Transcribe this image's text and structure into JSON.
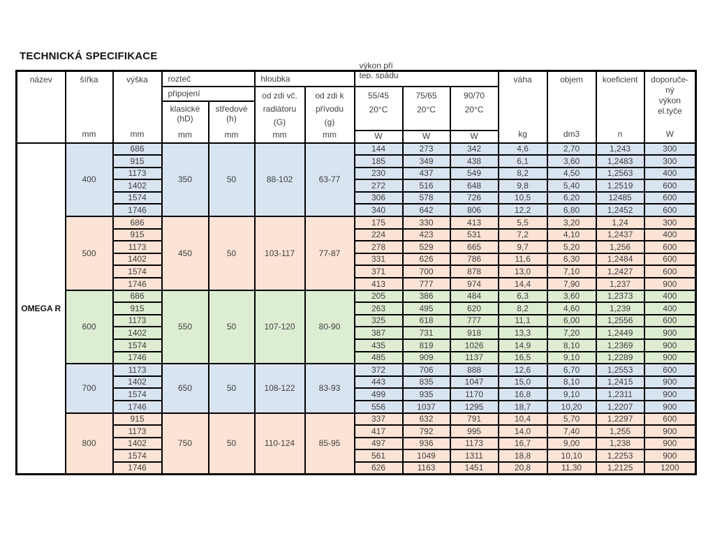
{
  "title": "TECHNICKÁ SPECIFIKACE",
  "product": "OMEGA R",
  "colors": {
    "blue": "#d8e4f0",
    "peach": "#fbe3d5",
    "green": "#dcedd2",
    "border": "#000000",
    "text": "#3f3f3f"
  },
  "header": {
    "nazev": "název",
    "sirka": "šířka",
    "vyska": "výška",
    "roztec": "rozteč",
    "pripojeni": "připojení",
    "klasicke_label": "klasické",
    "klasicke_sub": "(hD)",
    "stredove_label": "středové",
    "stredove_sub": "(h)",
    "hloubka": "hloubka",
    "depth1": [
      "od zdi  vč.",
      "radiátoru",
      "(G)"
    ],
    "depth2": [
      "od zdi  k",
      "přívodu",
      "(g)"
    ],
    "vykon_line1": "výkon při",
    "vykon_line2": "tep. spádu",
    "temp_cols": [
      "55/45",
      "75/65",
      "90/70"
    ],
    "temp_sub": "20°C",
    "vaha": "váha",
    "objem": "objem",
    "koeficient": "koeficient",
    "doporuceny": [
      "doporuče-",
      "ný",
      "výkon",
      "el.tyče"
    ],
    "unit_mm": "mm",
    "unit_w": "W",
    "unit_kg": "kg",
    "unit_dm3": "dm3",
    "unit_n": "n"
  },
  "blocks": [
    {
      "width": "400",
      "color": "blue",
      "klasicke": "350",
      "stredove": "50",
      "depth_g": "88-102",
      "depth_g2": "63-77",
      "rows": [
        [
          "686",
          "144",
          "273",
          "342",
          "4,6",
          "2,70",
          "1,243",
          "300"
        ],
        [
          "915",
          "185",
          "349",
          "438",
          "6,1",
          "3,60",
          "1,2483",
          "300"
        ],
        [
          "1173",
          "230",
          "437",
          "549",
          "8,2",
          "4,50",
          "1,2563",
          "400"
        ],
        [
          "1402",
          "272",
          "516",
          "648",
          "9,8",
          "5,40",
          "1,2519",
          "600"
        ],
        [
          "1574",
          "306",
          "578",
          "726",
          "10,5",
          "6,20",
          "12485",
          "600"
        ],
        [
          "1746",
          "340",
          "642",
          "806",
          "12,2",
          "6,80",
          "1,2452",
          "600"
        ]
      ]
    },
    {
      "width": "500",
      "color": "peach",
      "klasicke": "450",
      "stredove": "50",
      "depth_g": "103-117",
      "depth_g2": "77-87",
      "rows": [
        [
          "686",
          "175",
          "330",
          "413",
          "5,5",
          "3,20",
          "1,24",
          "300"
        ],
        [
          "915",
          "224",
          "423",
          "531",
          "7,2",
          "4,10",
          "1,2437",
          "400"
        ],
        [
          "1173",
          "278",
          "529",
          "665",
          "9,7",
          "5,20",
          "1,256",
          "600"
        ],
        [
          "1402",
          "331",
          "626",
          "786",
          "11,6",
          "6,30",
          "1,2484",
          "600"
        ],
        [
          "1574",
          "371",
          "700",
          "878",
          "13,0",
          "7,10",
          "1,2427",
          "600"
        ],
        [
          "1746",
          "413",
          "777",
          "974",
          "14,4",
          "7,90",
          "1,237",
          "900"
        ]
      ]
    },
    {
      "width": "600",
      "color": "green",
      "klasicke": "550",
      "stredove": "50",
      "depth_g": "107-120",
      "depth_g2": "80-90",
      "rows": [
        [
          "686",
          "205",
          "386",
          "484",
          "6,3",
          "3,60",
          "1,2373",
          "400"
        ],
        [
          "915",
          "263",
          "495",
          "620",
          "8,2",
          "4,60",
          "1,239",
          "400"
        ],
        [
          "1173",
          "325",
          "618",
          "777",
          "11,1",
          "6,00",
          "1,2556",
          "600"
        ],
        [
          "1402",
          "387",
          "731",
          "918",
          "13,3",
          "7,20",
          "1,2449",
          "900"
        ],
        [
          "1574",
          "435",
          "819",
          "1026",
          "14,9",
          "8,10",
          "1,2369",
          "900"
        ],
        [
          "1746",
          "485",
          "909",
          "1137",
          "16,5",
          "9,10",
          "1,2289",
          "900"
        ]
      ]
    },
    {
      "width": "700",
      "color": "blue",
      "klasicke": "650",
      "stredove": "50",
      "depth_g": "108-122",
      "depth_g2": "83-93",
      "rows": [
        [
          "1173",
          "372",
          "706",
          "888",
          "12,6",
          "6,70",
          "1,2553",
          "600"
        ],
        [
          "1402",
          "443",
          "835",
          "1047",
          "15,0",
          "8,10",
          "1,2415",
          "900"
        ],
        [
          "1574",
          "499",
          "935",
          "1170",
          "16,8",
          "9,10",
          "1,2311",
          "900"
        ],
        [
          "1746",
          "556",
          "1037",
          "1295",
          "18,7",
          "10,20",
          "1,2207",
          "900"
        ]
      ]
    },
    {
      "width": "800",
      "color": "peach",
      "klasicke": "750",
      "stredove": "50",
      "depth_g": "110-124",
      "depth_g2": "85-95",
      "rows": [
        [
          "915",
          "337",
          "632",
          "791",
          "10,4",
          "5,70",
          "1,2297",
          "600"
        ],
        [
          "1173",
          "417",
          "792",
          "995",
          "14,0",
          "7,40",
          "1,255",
          "900"
        ],
        [
          "1402",
          "497",
          "936",
          "1173",
          "16,7",
          "9,00",
          "1,238",
          "900"
        ],
        [
          "1574",
          "561",
          "1049",
          "1311",
          "18,8",
          "10,10",
          "1,2253",
          "900"
        ],
        [
          "1746",
          "626",
          "1163",
          "1451",
          "20,8",
          "11,30",
          "1,2125",
          "1200"
        ]
      ]
    }
  ]
}
